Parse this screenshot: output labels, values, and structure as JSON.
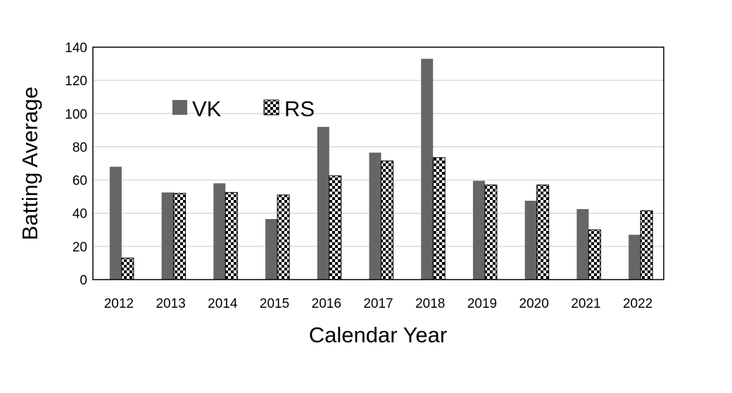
{
  "chart_data": {
    "type": "bar",
    "title": "",
    "xlabel": "Calendar Year",
    "ylabel": "Batting Average",
    "ylim": [
      0,
      140
    ],
    "yticks": [
      "0",
      "20",
      "40",
      "60",
      "80",
      "100",
      "120",
      "140"
    ],
    "categories": [
      "2012",
      "2013",
      "2014",
      "2015",
      "2016",
      "2017",
      "2018",
      "2019",
      "2020",
      "2021",
      "2022"
    ],
    "series": [
      {
        "name": "VK",
        "pattern": "solid",
        "color": "#666666",
        "values": [
          68,
          52.5,
          58,
          36.5,
          92,
          76.5,
          133,
          59.5,
          47.5,
          42.5,
          27
        ]
      },
      {
        "name": "RS",
        "pattern": "checkerboard",
        "color": "#000000",
        "values": [
          13,
          52,
          52.5,
          51,
          62.5,
          71.5,
          73.5,
          57,
          57,
          30,
          41.5
        ]
      }
    ],
    "grid": true,
    "legend": "top-left",
    "colors": {
      "vk": "#666666",
      "rs_check": "#000000",
      "grid": "#d9d9d9",
      "frame": "#000000"
    }
  }
}
